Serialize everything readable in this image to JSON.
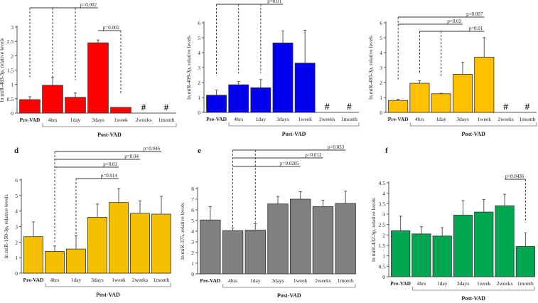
{
  "chart_data": [
    {
      "type": "bar",
      "panel_label": "",
      "ylabel": "ln miR-483-3p, relative levels",
      "ylim": [
        0,
        3
      ],
      "ytick_step": 0.5,
      "categories": [
        "Pre-VAD",
        "4hrs",
        "1day",
        "3days",
        "1week",
        "2weeks",
        "1month"
      ],
      "values": [
        0.47,
        0.97,
        0.55,
        2.45,
        0.2,
        null,
        null
      ],
      "errors": [
        0.1,
        0.27,
        0.15,
        0.1,
        0,
        null,
        null
      ],
      "missing_marker": "#",
      "group_label": "Post-VAD",
      "color": "#ff0000",
      "significance": [
        {
          "from": 0,
          "to": 3,
          "label": "p=0.002",
          "drops": [
            0,
            1,
            2
          ]
        },
        {
          "from": 3,
          "to": 4,
          "label": "p=0.002",
          "drops": [
            4
          ]
        }
      ]
    },
    {
      "type": "bar",
      "panel_label": "",
      "ylabel": "ln miR-409-3p, relative levels",
      "ylim": [
        0,
        6
      ],
      "ytick_step": 1,
      "categories": [
        "Pre-VAD",
        "4hrs",
        "1day",
        "3days",
        "1week",
        "2weeks",
        "1month"
      ],
      "values": [
        1.15,
        1.85,
        1.65,
        4.65,
        3.3,
        null,
        null
      ],
      "errors": [
        0.35,
        0.22,
        0.55,
        0.8,
        2.2,
        null,
        null
      ],
      "missing_marker": "#",
      "group_label": "Post-VAD",
      "color": "#0000ee",
      "significance": [
        {
          "from": 0,
          "to": 3,
          "label": "p=0.01",
          "drops": [
            0,
            1,
            2
          ]
        }
      ]
    },
    {
      "type": "bar",
      "panel_label": "",
      "ylabel": "ln miR-485-3p, relative levels",
      "ylim": [
        0,
        6
      ],
      "ytick_step": 1,
      "categories": [
        "Pre-VAD",
        "4hrs",
        "1day",
        "3days",
        "1week",
        "2weeks",
        "1month"
      ],
      "values": [
        0.8,
        1.95,
        1.25,
        2.55,
        3.7,
        null,
        null
      ],
      "errors": [
        0.08,
        0.18,
        0.03,
        0.8,
        1.3,
        null,
        null
      ],
      "missing_marker": "#",
      "group_label": "Post-VAD",
      "color": "#ffc000",
      "significance": [
        {
          "from": 0,
          "to": 4,
          "label": "p=0.007",
          "drops": [
            0
          ]
        },
        {
          "from": 0,
          "to": 3,
          "label": "p=0.02",
          "drops": []
        },
        {
          "from": 1,
          "to": 4,
          "label": "p=0.01",
          "drops": [
            1,
            2
          ]
        }
      ]
    },
    {
      "type": "bar",
      "panel_label": "d",
      "ylabel": "ln miR-150-3p, relative levels",
      "ylim": [
        0,
        6
      ],
      "ytick_step": 1,
      "categories": [
        "Pre-VAD",
        "4hrs",
        "1day",
        "3days",
        "1week",
        "2weeks",
        "1month"
      ],
      "values": [
        2.35,
        1.4,
        1.55,
        3.6,
        4.55,
        3.85,
        3.8
      ],
      "errors": [
        0.95,
        0.35,
        0.85,
        0.85,
        0.9,
        0.8,
        1.15
      ],
      "missing_marker": "#",
      "group_label": "Post-VAD",
      "color": "#f5c000",
      "significance": [
        {
          "from": 1,
          "to": 6,
          "label": "p=0.046",
          "drops": [
            1
          ]
        },
        {
          "from": 1,
          "to": 5,
          "label": "p=0.04",
          "drops": []
        },
        {
          "from": 1,
          "to": 4,
          "label": "p=0.01",
          "drops": []
        },
        {
          "from": 2,
          "to": 4,
          "label": "p=0.014",
          "drops": [
            2
          ]
        }
      ]
    },
    {
      "type": "bar",
      "panel_label": "e",
      "ylabel": "ln miR-375, relative levels",
      "ylim": [
        0,
        8
      ],
      "ytick_step": 1,
      "categories": [
        "Pre-VAD",
        "4hrs",
        "1day",
        "3days",
        "1week",
        "2weeks",
        "1month"
      ],
      "values": [
        5.05,
        4.05,
        4.1,
        6.55,
        7.0,
        6.3,
        6.6
      ],
      "errors": [
        1.25,
        0.25,
        0.6,
        0.7,
        0.7,
        0.6,
        1.15
      ],
      "missing_marker": "#",
      "group_label": "Post-VAD",
      "color": "#808080",
      "significance": [
        {
          "from": 1,
          "to": 6,
          "label": "p=0.033",
          "drops": [
            1,
            2
          ]
        },
        {
          "from": 1,
          "to": 5,
          "label": "p=0.012",
          "drops": []
        },
        {
          "from": 1,
          "to": 4,
          "label": "p=0.0285",
          "drops": []
        }
      ]
    },
    {
      "type": "bar",
      "panel_label": "f",
      "ylabel": "ln miR-432-5p, relative levels",
      "ylim": [
        0,
        4.5
      ],
      "ytick_step": 0.5,
      "categories": [
        "Pre-VAD",
        "4hrs",
        "1day",
        "3days",
        "1week",
        "2weeks",
        "1month"
      ],
      "values": [
        2.2,
        2.05,
        1.95,
        2.95,
        3.1,
        3.4,
        1.45
      ],
      "errors": [
        0.7,
        0.35,
        0.4,
        0.7,
        0.6,
        0.55,
        0.65
      ],
      "missing_marker": "#",
      "group_label": "Post-VAD",
      "color": "#00a650",
      "significance": [
        {
          "from": 5,
          "to": 6,
          "label": "p=0.0436",
          "drops": [
            6
          ]
        }
      ]
    }
  ]
}
